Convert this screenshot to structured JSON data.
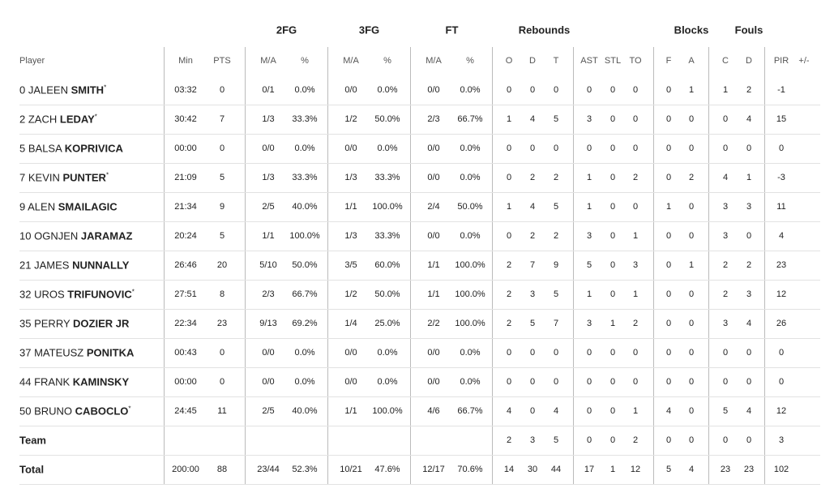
{
  "table": {
    "groups": [
      {
        "label": "2FG",
        "col": 2
      },
      {
        "label": "3FG",
        "col": 4
      },
      {
        "label": "FT",
        "col": 6
      },
      {
        "label": "Rebounds",
        "col": 9
      },
      {
        "label": "Blocks",
        "col": 14.5
      },
      {
        "label": "Fouls",
        "col": 16.5
      }
    ],
    "player_header": "Player",
    "columns": [
      "Min",
      "PTS",
      "M/A",
      "%",
      "M/A",
      "%",
      "M/A",
      "%",
      "O",
      "D",
      "T",
      "AST",
      "STL",
      "TO",
      "F",
      "A",
      "C",
      "D",
      "PIR",
      "+/-"
    ],
    "players": [
      {
        "number": 0,
        "first": "JALEEN",
        "last": "SMITH",
        "mark": "*",
        "stats": [
          "03:32",
          0,
          "0/1",
          "0.0%",
          "0/0",
          "0.0%",
          "0/0",
          "0.0%",
          0,
          0,
          0,
          0,
          0,
          0,
          0,
          1,
          1,
          2,
          -1,
          null
        ]
      },
      {
        "number": 2,
        "first": "ZACH",
        "last": "LEDAY",
        "mark": "*",
        "stats": [
          "30:42",
          7,
          "1/3",
          "33.3%",
          "1/2",
          "50.0%",
          "2/3",
          "66.7%",
          1,
          4,
          5,
          3,
          0,
          0,
          0,
          0,
          0,
          4,
          15,
          null
        ]
      },
      {
        "number": 5,
        "first": "BALSA",
        "last": "KOPRIVICA",
        "stats": [
          "00:00",
          0,
          "0/0",
          "0.0%",
          "0/0",
          "0.0%",
          "0/0",
          "0.0%",
          0,
          0,
          0,
          0,
          0,
          0,
          0,
          0,
          0,
          0,
          0,
          null
        ]
      },
      {
        "number": 7,
        "first": "KEVIN",
        "last": "PUNTER",
        "mark": "*",
        "stats": [
          "21:09",
          5,
          "1/3",
          "33.3%",
          "1/3",
          "33.3%",
          "0/0",
          "0.0%",
          0,
          2,
          2,
          1,
          0,
          2,
          0,
          2,
          4,
          1,
          -3,
          null
        ]
      },
      {
        "number": 9,
        "first": "ALEN",
        "last": "SMAILAGIC",
        "stats": [
          "21:34",
          9,
          "2/5",
          "40.0%",
          "1/1",
          "100.0%",
          "2/4",
          "50.0%",
          1,
          4,
          5,
          1,
          0,
          0,
          1,
          0,
          3,
          3,
          11,
          null
        ]
      },
      {
        "number": 10,
        "first": "OGNJEN",
        "last": "JARAMAZ",
        "stats": [
          "20:24",
          5,
          "1/1",
          "100.0%",
          "1/3",
          "33.3%",
          "0/0",
          "0.0%",
          0,
          2,
          2,
          3,
          0,
          1,
          0,
          0,
          3,
          0,
          4,
          null
        ]
      },
      {
        "number": 21,
        "first": "JAMES",
        "last": "NUNNALLY",
        "stats": [
          "26:46",
          20,
          "5/10",
          "50.0%",
          "3/5",
          "60.0%",
          "1/1",
          "100.0%",
          2,
          7,
          9,
          5,
          0,
          3,
          0,
          1,
          2,
          2,
          23,
          null
        ]
      },
      {
        "number": 32,
        "first": "UROS",
        "last": "TRIFUNOVIC",
        "mark": "*",
        "stats": [
          "27:51",
          8,
          "2/3",
          "66.7%",
          "1/2",
          "50.0%",
          "1/1",
          "100.0%",
          2,
          3,
          5,
          1,
          0,
          1,
          0,
          0,
          2,
          3,
          12,
          null
        ]
      },
      {
        "number": 35,
        "first": "PERRY",
        "last": "DOZIER JR",
        "stats": [
          "22:34",
          23,
          "9/13",
          "69.2%",
          "1/4",
          "25.0%",
          "2/2",
          "100.0%",
          2,
          5,
          7,
          3,
          1,
          2,
          0,
          0,
          3,
          4,
          26,
          null
        ]
      },
      {
        "number": 37,
        "first": "MATEUSZ",
        "last": "PONITKA",
        "stats": [
          "00:43",
          0,
          "0/0",
          "0.0%",
          "0/0",
          "0.0%",
          "0/0",
          "0.0%",
          0,
          0,
          0,
          0,
          0,
          0,
          0,
          0,
          0,
          0,
          0,
          null
        ]
      },
      {
        "number": 44,
        "first": "FRANK",
        "last": "KAMINSKY",
        "stats": [
          "00:00",
          0,
          "0/0",
          "0.0%",
          "0/0",
          "0.0%",
          "0/0",
          "0.0%",
          0,
          0,
          0,
          0,
          0,
          0,
          0,
          0,
          0,
          0,
          0,
          null
        ]
      },
      {
        "number": 50,
        "first": "BRUNO",
        "last": "CABOCLO",
        "mark": "*",
        "stats": [
          "24:45",
          11,
          "2/5",
          "40.0%",
          "1/1",
          "100.0%",
          "4/6",
          "66.7%",
          4,
          0,
          4,
          0,
          0,
          1,
          4,
          0,
          5,
          4,
          12,
          null
        ]
      }
    ],
    "summary": [
      {
        "label": "Team",
        "stats": [
          null,
          null,
          null,
          null,
          null,
          null,
          null,
          null,
          2,
          3,
          5,
          0,
          0,
          2,
          0,
          0,
          0,
          0,
          3,
          null
        ]
      },
      {
        "label": "Total",
        "stats": [
          "200:00",
          88,
          "23/44",
          "52.3%",
          "10/21",
          "47.6%",
          "12/17",
          "70.6%",
          14,
          30,
          44,
          17,
          1,
          12,
          5,
          4,
          23,
          23,
          102,
          null
        ]
      }
    ]
  }
}
